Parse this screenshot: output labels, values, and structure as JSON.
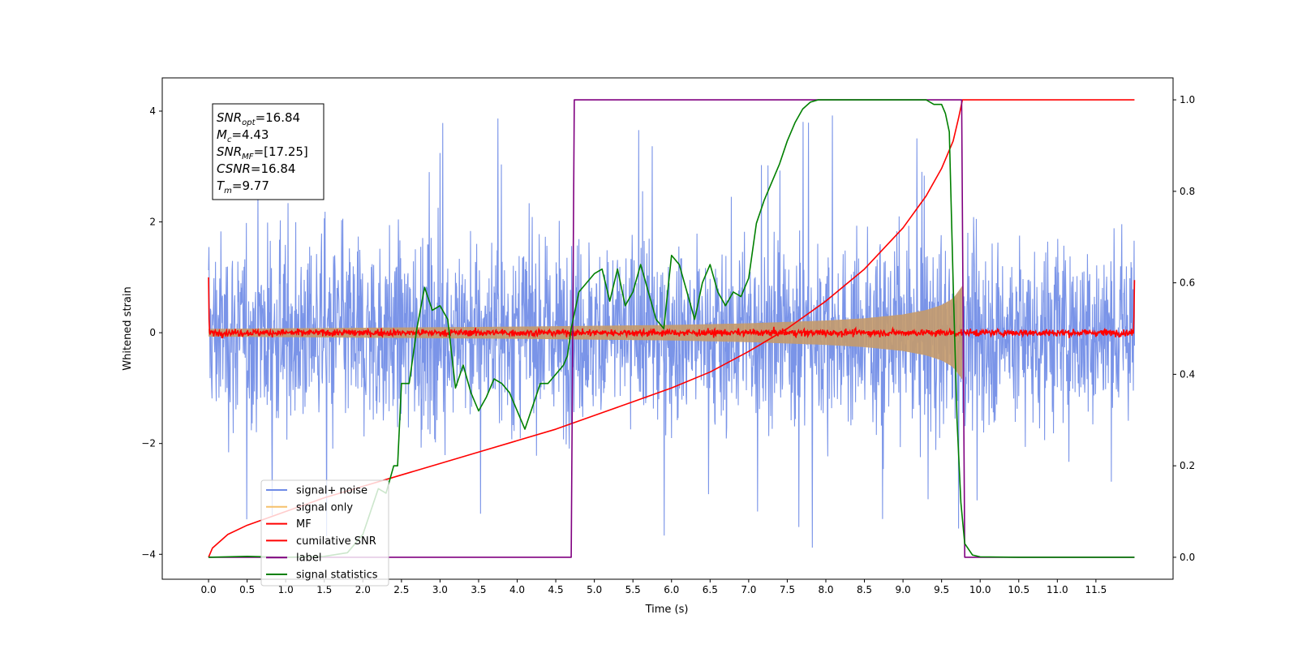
{
  "chart_data": {
    "type": "line",
    "xlabel": "Time (s)",
    "ylabel_left": "Whitened strain",
    "ylabel_right": "",
    "xlim": [
      -0.6,
      12.5
    ],
    "ylim_left": [
      -4.45,
      4.6
    ],
    "ylim_right": [
      -0.048,
      1.048
    ],
    "grid": false,
    "legend_position": "lower-left",
    "x_ticks": [
      "0.0",
      "0.5",
      "1.0",
      "1.5",
      "2.0",
      "2.5",
      "3.0",
      "3.5",
      "4.0",
      "4.5",
      "5.0",
      "5.5",
      "6.0",
      "6.5",
      "7.0",
      "7.5",
      "8.0",
      "8.5",
      "9.0",
      "9.5",
      "10.0",
      "10.5",
      "11.0",
      "11.5"
    ],
    "x_tick_values": [
      0,
      0.5,
      1,
      1.5,
      2,
      2.5,
      3,
      3.5,
      4,
      4.5,
      5,
      5.5,
      6,
      6.5,
      7,
      7.5,
      8,
      8.5,
      9,
      9.5,
      10,
      10.5,
      11,
      11.5
    ],
    "y_ticks_left": [
      {
        "value": 4,
        "label": "4"
      },
      {
        "value": 2,
        "label": "2"
      },
      {
        "value": 0,
        "label": "0"
      },
      {
        "value": -2,
        "label": "−2"
      },
      {
        "value": -4,
        "label": "−4"
      }
    ],
    "y_ticks_right": [
      {
        "value": 0.0,
        "label": "0.0"
      },
      {
        "value": 0.2,
        "label": "0.2"
      },
      {
        "value": 0.4,
        "label": "0.4"
      },
      {
        "value": 0.6,
        "label": "0.6"
      },
      {
        "value": 0.8,
        "label": "0.8"
      },
      {
        "value": 1.0,
        "label": "1.0"
      }
    ],
    "annotation": {
      "lines": [
        {
          "sym": "SNR",
          "sub": "opt",
          "value": "=16.84"
        },
        {
          "sym": "M",
          "sub": "c",
          "value": "=4.43"
        },
        {
          "sym": "SNR",
          "sub": "MF",
          "value": "=[17.25]"
        },
        {
          "sym": "CSNR",
          "sub": "",
          "value": "=16.84"
        },
        {
          "sym": "T",
          "sub": "m",
          "value": "=9.77"
        }
      ]
    },
    "series": [
      {
        "name": "signal+ noise",
        "axis": "left",
        "color": "#6f8be6",
        "style": "noise",
        "x_range": [
          0,
          12.0
        ],
        "amplitude_typical": 1.6,
        "amplitude_max": 4.1
      },
      {
        "name": "signal only",
        "axis": "left",
        "color": "#f5c06b",
        "style": "chirp-envelope",
        "x_range": [
          0,
          9.77
        ],
        "envelope": {
          "x": [
            0,
            2,
            4,
            6,
            7,
            8,
            8.5,
            9,
            9.3,
            9.5,
            9.65,
            9.77
          ],
          "y": [
            0.07,
            0.09,
            0.11,
            0.14,
            0.17,
            0.22,
            0.26,
            0.33,
            0.41,
            0.5,
            0.62,
            0.85
          ]
        }
      },
      {
        "name": "MF",
        "axis": "left",
        "color": "#ff0000",
        "style": "noise",
        "x_range": [
          0,
          12.0
        ],
        "amplitude_typical": 0.08,
        "edge_values": [
          1.0,
          0.95
        ]
      },
      {
        "name": "cumilative SNR",
        "axis": "right",
        "color": "#ff0000",
        "style": "line",
        "x": [
          0,
          0.05,
          0.25,
          0.5,
          1,
          1.5,
          2,
          2.5,
          3,
          3.5,
          4,
          4.5,
          5,
          5.5,
          6,
          6.5,
          7,
          7.5,
          8,
          8.5,
          9,
          9.3,
          9.5,
          9.65,
          9.72,
          9.77,
          12.0
        ],
        "values": [
          0,
          0.02,
          0.05,
          0.07,
          0.1,
          0.13,
          0.155,
          0.18,
          0.205,
          0.23,
          0.255,
          0.28,
          0.31,
          0.34,
          0.37,
          0.405,
          0.45,
          0.5,
          0.56,
          0.63,
          0.72,
          0.79,
          0.85,
          0.91,
          0.96,
          1.0,
          1.0
        ]
      },
      {
        "name": "label",
        "axis": "right",
        "color": "#800080",
        "style": "line",
        "x": [
          0,
          4.7,
          4.74,
          9.76,
          9.8,
          12.0
        ],
        "values": [
          0,
          0,
          1,
          1,
          0,
          0
        ]
      },
      {
        "name": "signal statistics",
        "axis": "right",
        "color": "#008000",
        "style": "line",
        "x": [
          0,
          0.5,
          1.0,
          1.5,
          1.8,
          2.0,
          2.1,
          2.2,
          2.3,
          2.4,
          2.45,
          2.5,
          2.6,
          2.7,
          2.8,
          2.9,
          3.0,
          3.1,
          3.2,
          3.3,
          3.4,
          3.5,
          3.6,
          3.7,
          3.8,
          3.9,
          4.0,
          4.1,
          4.2,
          4.3,
          4.4,
          4.5,
          4.6,
          4.65,
          4.7,
          4.8,
          4.9,
          5.0,
          5.1,
          5.2,
          5.3,
          5.4,
          5.5,
          5.6,
          5.7,
          5.8,
          5.9,
          6.0,
          6.1,
          6.2,
          6.3,
          6.4,
          6.5,
          6.6,
          6.7,
          6.8,
          6.9,
          7.0,
          7.1,
          7.2,
          7.3,
          7.4,
          7.5,
          7.6,
          7.7,
          7.8,
          7.9,
          8.0,
          8.5,
          9.0,
          9.3,
          9.4,
          9.5,
          9.55,
          9.6,
          9.65,
          9.7,
          9.75,
          9.8,
          9.9,
          10.0,
          10.5,
          11.0,
          11.5,
          12.0
        ],
        "values": [
          0.0,
          0.002,
          0.0,
          0.002,
          0.01,
          0.05,
          0.1,
          0.15,
          0.14,
          0.2,
          0.2,
          0.38,
          0.38,
          0.5,
          0.59,
          0.54,
          0.55,
          0.52,
          0.37,
          0.42,
          0.36,
          0.32,
          0.35,
          0.39,
          0.38,
          0.36,
          0.32,
          0.28,
          0.33,
          0.38,
          0.38,
          0.4,
          0.42,
          0.44,
          0.5,
          0.58,
          0.6,
          0.62,
          0.63,
          0.56,
          0.63,
          0.55,
          0.58,
          0.64,
          0.58,
          0.52,
          0.5,
          0.66,
          0.64,
          0.58,
          0.52,
          0.6,
          0.64,
          0.58,
          0.55,
          0.58,
          0.57,
          0.61,
          0.73,
          0.78,
          0.82,
          0.86,
          0.91,
          0.95,
          0.98,
          0.995,
          1.0,
          1.0,
          1.0,
          1.0,
          1.0,
          0.99,
          0.99,
          0.97,
          0.93,
          0.6,
          0.3,
          0.12,
          0.03,
          0.005,
          0.001,
          0.0,
          0.0,
          0.0,
          0.0
        ]
      }
    ]
  }
}
